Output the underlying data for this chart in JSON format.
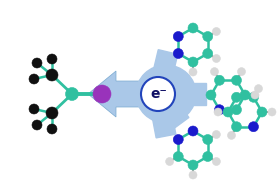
{
  "bg_color": "#ffffff",
  "arrow_color": "#aac8e8",
  "arrow_ec": "#7aaad0",
  "circle_color": "#ffffff",
  "circle_edge_color": "#2244bb",
  "e_text": "e⁻",
  "e_color": "#111166",
  "iodine_color": "#9933bb",
  "carbon_color": "#101010",
  "teal_color": "#30c0a0",
  "nitrogen_color": "#1a1acc",
  "hydrogen_color": "#d8d8d8",
  "bond_teal": "#30c0a0",
  "bond_dark": "#30c0a0",
  "fig_width": 2.78,
  "fig_height": 1.89,
  "dpi": 100
}
